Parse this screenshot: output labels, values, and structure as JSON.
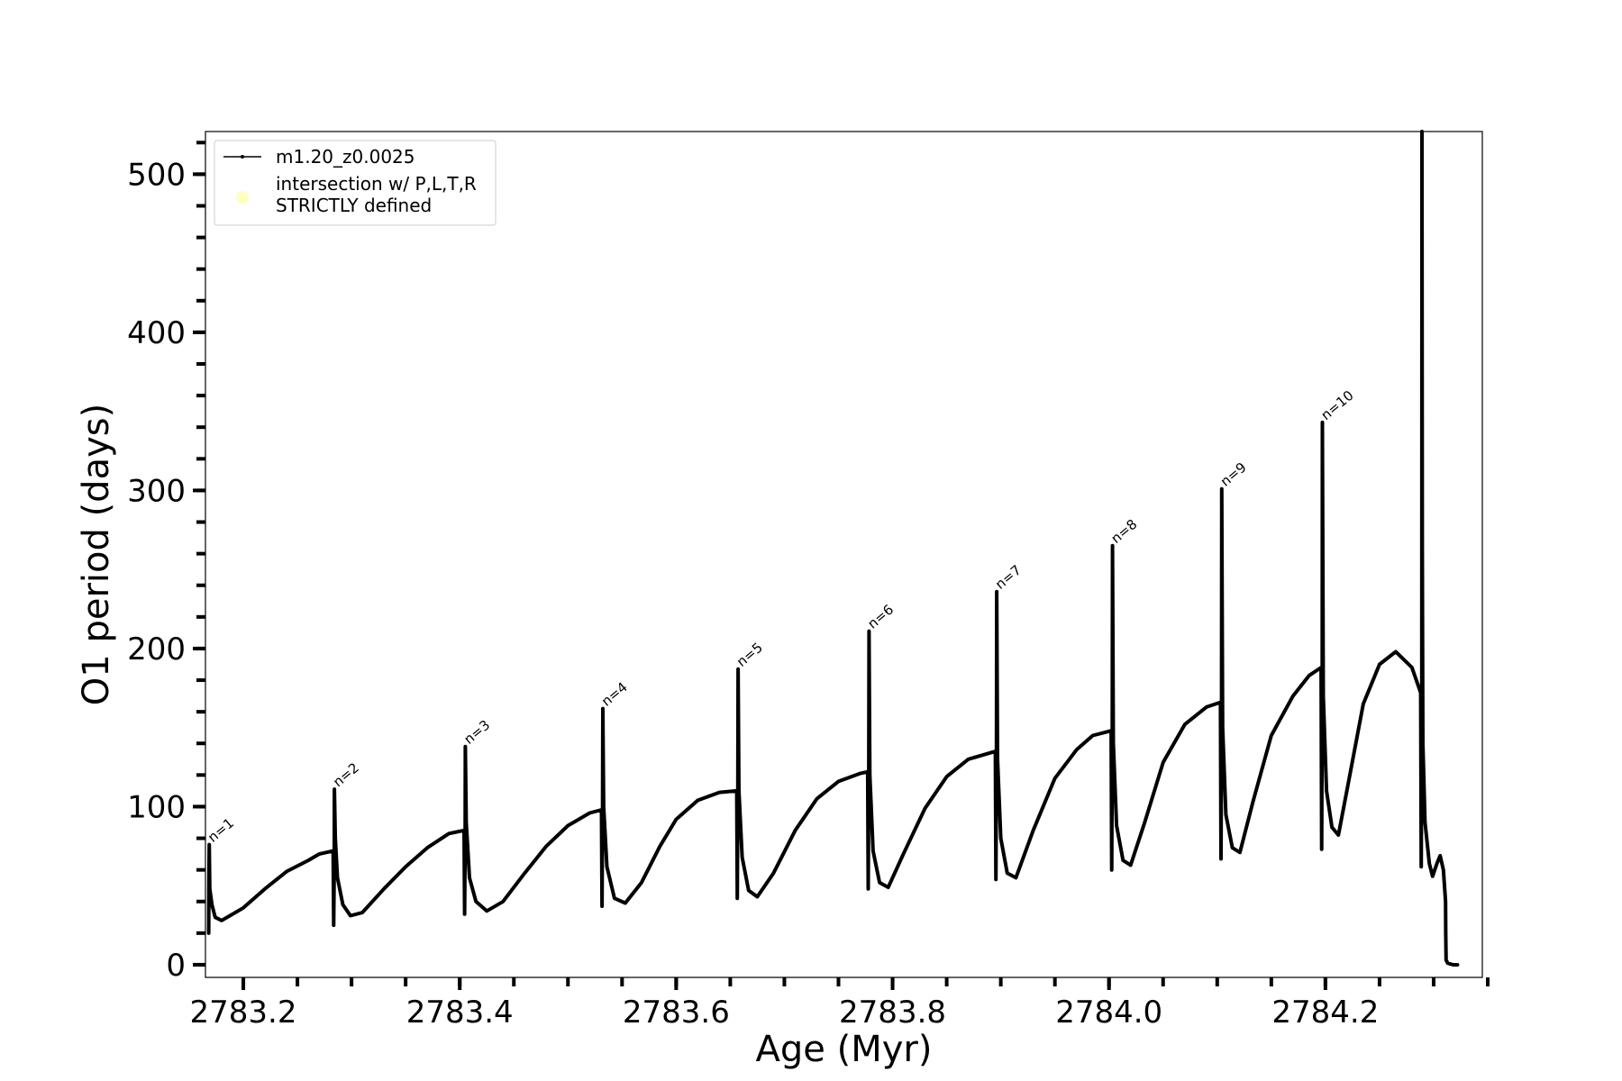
{
  "chart_data": {
    "type": "line",
    "title": "",
    "xlabel": "Age (Myr)",
    "ylabel": "O1 period (days)",
    "xlim": [
      2783.165,
      2784.345
    ],
    "ylim": [
      -8,
      527
    ],
    "x_ticks": [
      2783.2,
      2783.4,
      2783.6,
      2783.8,
      2784.0,
      2784.2
    ],
    "x_tick_labels": [
      "2783.2",
      "2783.4",
      "2783.6",
      "2783.8",
      "2784.0",
      "2784.2"
    ],
    "x_minor_ticks": [
      2783.2,
      2783.25,
      2783.3,
      2783.35,
      2783.4,
      2783.45,
      2783.5,
      2783.55,
      2783.6,
      2783.65,
      2783.7,
      2783.75,
      2783.8,
      2783.85,
      2783.9,
      2783.95,
      2784.0,
      2784.05,
      2784.1,
      2784.15,
      2784.2,
      2784.25,
      2784.3,
      2784.35
    ],
    "y_ticks": [
      0,
      100,
      200,
      300,
      400,
      500
    ],
    "y_tick_labels": [
      "0",
      "100",
      "200",
      "300",
      "400",
      "500"
    ],
    "y_minor_step": 20,
    "grid": false,
    "legend_position": "top-left",
    "series": [
      {
        "name": "m1.20_z0.0025",
        "color": "#000000",
        "style": "line-with-point-markers",
        "points": [
          [
            2783.168,
            20
          ],
          [
            2783.1682,
            52
          ],
          [
            2783.1685,
            76
          ],
          [
            2783.169,
            48
          ],
          [
            2783.171,
            38
          ],
          [
            2783.174,
            30
          ],
          [
            2783.18,
            28
          ],
          [
            2783.2,
            36
          ],
          [
            2783.22,
            48
          ],
          [
            2783.24,
            59
          ],
          [
            2783.26,
            66
          ],
          [
            2783.27,
            70
          ],
          [
            2783.283,
            72
          ],
          [
            2783.2835,
            25
          ],
          [
            2783.284,
            60
          ],
          [
            2783.2842,
            111
          ],
          [
            2783.285,
            80
          ],
          [
            2783.287,
            55
          ],
          [
            2783.292,
            38
          ],
          [
            2783.299,
            31
          ],
          [
            2783.31,
            33
          ],
          [
            2783.33,
            48
          ],
          [
            2783.35,
            62
          ],
          [
            2783.37,
            74
          ],
          [
            2783.39,
            83
          ],
          [
            2783.404,
            85
          ],
          [
            2783.4045,
            32
          ],
          [
            2783.405,
            80
          ],
          [
            2783.4052,
            138
          ],
          [
            2783.406,
            90
          ],
          [
            2783.409,
            55
          ],
          [
            2783.415,
            40
          ],
          [
            2783.425,
            34
          ],
          [
            2783.44,
            40
          ],
          [
            2783.46,
            58
          ],
          [
            2783.48,
            75
          ],
          [
            2783.5,
            88
          ],
          [
            2783.52,
            96
          ],
          [
            2783.531,
            98
          ],
          [
            2783.5315,
            37
          ],
          [
            2783.532,
            100
          ],
          [
            2783.5322,
            162
          ],
          [
            2783.533,
            100
          ],
          [
            2783.536,
            62
          ],
          [
            2783.543,
            42
          ],
          [
            2783.553,
            39
          ],
          [
            2783.568,
            52
          ],
          [
            2783.585,
            75
          ],
          [
            2783.6,
            92
          ],
          [
            2783.62,
            104
          ],
          [
            2783.64,
            109
          ],
          [
            2783.656,
            110
          ],
          [
            2783.6565,
            42
          ],
          [
            2783.657,
            110
          ],
          [
            2783.6572,
            187
          ],
          [
            2783.658,
            110
          ],
          [
            2783.661,
            68
          ],
          [
            2783.667,
            47
          ],
          [
            2783.675,
            43
          ],
          [
            2783.69,
            58
          ],
          [
            2783.71,
            85
          ],
          [
            2783.73,
            105
          ],
          [
            2783.75,
            116
          ],
          [
            2783.77,
            121
          ],
          [
            2783.777,
            122
          ],
          [
            2783.7775,
            48
          ],
          [
            2783.778,
            120
          ],
          [
            2783.7782,
            211
          ],
          [
            2783.779,
            120
          ],
          [
            2783.782,
            72
          ],
          [
            2783.788,
            52
          ],
          [
            2783.796,
            49
          ],
          [
            2783.81,
            70
          ],
          [
            2783.83,
            99
          ],
          [
            2783.85,
            119
          ],
          [
            2783.87,
            130
          ],
          [
            2783.89,
            134
          ],
          [
            2783.895,
            135
          ],
          [
            2783.8955,
            54
          ],
          [
            2783.896,
            130
          ],
          [
            2783.8962,
            236
          ],
          [
            2783.897,
            130
          ],
          [
            2783.9,
            80
          ],
          [
            2783.906,
            58
          ],
          [
            2783.914,
            55
          ],
          [
            2783.93,
            85
          ],
          [
            2783.95,
            118
          ],
          [
            2783.97,
            136
          ],
          [
            2783.985,
            145
          ],
          [
            2784.002,
            148
          ],
          [
            2784.0025,
            60
          ],
          [
            2784.003,
            140
          ],
          [
            2784.0032,
            265
          ],
          [
            2784.004,
            140
          ],
          [
            2784.007,
            88
          ],
          [
            2784.013,
            66
          ],
          [
            2784.02,
            63
          ],
          [
            2784.033,
            90
          ],
          [
            2784.05,
            128
          ],
          [
            2784.07,
            152
          ],
          [
            2784.09,
            163
          ],
          [
            2784.103,
            166
          ],
          [
            2784.1035,
            67
          ],
          [
            2784.104,
            150
          ],
          [
            2784.1042,
            301
          ],
          [
            2784.105,
            150
          ],
          [
            2784.108,
            95
          ],
          [
            2784.114,
            74
          ],
          [
            2784.121,
            71
          ],
          [
            2784.133,
            103
          ],
          [
            2784.15,
            145
          ],
          [
            2784.17,
            170
          ],
          [
            2784.185,
            183
          ],
          [
            2784.196,
            188
          ],
          [
            2784.1965,
            73
          ],
          [
            2784.197,
            170
          ],
          [
            2784.1972,
            343
          ],
          [
            2784.198,
            170
          ],
          [
            2784.201,
            110
          ],
          [
            2784.206,
            87
          ],
          [
            2784.212,
            82
          ],
          [
            2784.222,
            118
          ],
          [
            2784.235,
            165
          ],
          [
            2784.25,
            190
          ],
          [
            2784.265,
            198
          ],
          [
            2784.28,
            188
          ],
          [
            2784.288,
            172
          ],
          [
            2784.2885,
            62
          ],
          [
            2784.289,
            150
          ],
          [
            2784.2892,
            527
          ],
          [
            2784.2895,
            263
          ],
          [
            2784.29,
            140
          ],
          [
            2784.292,
            90
          ],
          [
            2784.296,
            64
          ],
          [
            2784.299,
            56
          ],
          [
            2784.303,
            64
          ],
          [
            2784.306,
            69
          ],
          [
            2784.309,
            60
          ],
          [
            2784.311,
            40
          ],
          [
            2784.3112,
            20
          ],
          [
            2784.3115,
            3
          ],
          [
            2784.313,
            1
          ],
          [
            2784.318,
            0
          ],
          [
            2784.322,
            0
          ]
        ]
      },
      {
        "name": "intersection w/ P,L,T,R\nSTRICTLY defined",
        "color": "#ffffb3",
        "points": []
      }
    ],
    "annotations": [
      {
        "text": "n=1",
        "x": 2783.1685,
        "y": 76
      },
      {
        "text": "n=2",
        "x": 2783.2842,
        "y": 111
      },
      {
        "text": "n=3",
        "x": 2783.4052,
        "y": 138
      },
      {
        "text": "n=4",
        "x": 2783.5322,
        "y": 162
      },
      {
        "text": "n=5",
        "x": 2783.6572,
        "y": 187
      },
      {
        "text": "n=6",
        "x": 2783.7782,
        "y": 211
      },
      {
        "text": "n=7",
        "x": 2783.8962,
        "y": 236
      },
      {
        "text": "n=8",
        "x": 2784.0032,
        "y": 265
      },
      {
        "text": "n=9",
        "x": 2784.1042,
        "y": 301
      },
      {
        "text": "n=10",
        "x": 2784.1972,
        "y": 343
      }
    ]
  }
}
